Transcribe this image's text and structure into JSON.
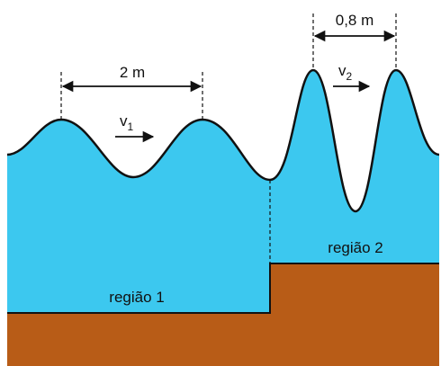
{
  "dimensions": {
    "region_1": "2 m",
    "region_2": "0,8 m"
  },
  "velocities": [
    {
      "symbol": "v",
      "subscript": "1"
    },
    {
      "symbol": "v",
      "subscript": "2"
    }
  ],
  "regions": [
    "região 1",
    "região 2"
  ]
}
